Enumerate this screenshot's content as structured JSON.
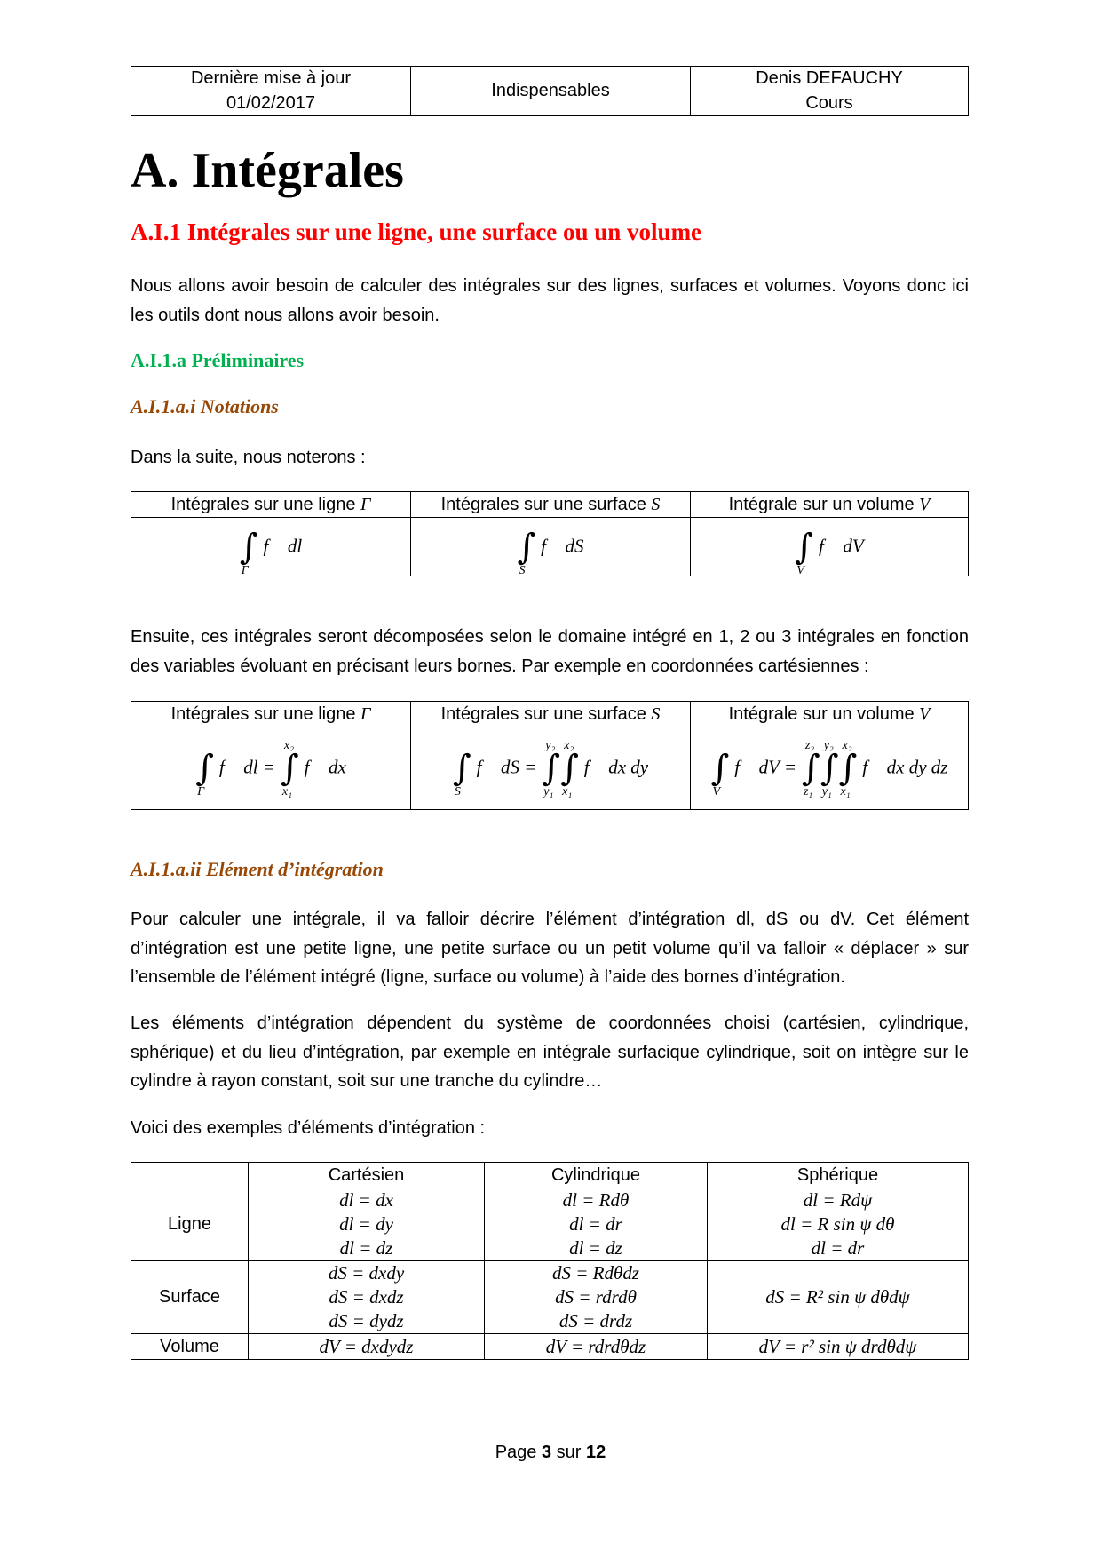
{
  "header": {
    "last_update_label": "Dernière mise à jour",
    "date": "01/02/2017",
    "category": "Indispensables",
    "author": "Denis DEFAUCHY",
    "type": "Cours"
  },
  "title": "A. Intégrales",
  "section": "A.I.1 Intégrales sur une ligne, une surface ou un volume",
  "intro": "Nous allons avoir besoin de calculer des intégrales sur des lignes, surfaces et volumes. Voyons donc ici les outils dont nous allons avoir besoin.",
  "subsection": "A.I.1.a Préliminaires",
  "subsub1": "A.I.1.a.i Notations",
  "notations_intro": "Dans la suite, nous noterons :",
  "table1": {
    "headers": [
      "Intégrales sur une ligne",
      "Intégrales sur une surface",
      "Intégrale sur un volume"
    ],
    "symbols": [
      "Γ",
      "S",
      "V"
    ],
    "elements": [
      "dl",
      "dS",
      "dV"
    ]
  },
  "decomp_text": "Ensuite, ces intégrales seront décomposées selon le domaine intégré en 1, 2 ou 3 intégrales en fonction des variables évoluant en précisant leurs bornes. Par exemple en coordonnées cartésiennes :",
  "subsub2": "A.I.1.a.ii Elément d’intégration",
  "element_p1": "Pour calculer une intégrale, il va falloir décrire l’élément d’intégration dl, dS ou dV. Cet élément d’intégration est une petite ligne, une petite surface ou un petit volume qu’il va falloir « déplacer » sur l’ensemble de l’élément intégré (ligne, surface ou volume) à l’aide des bornes d’intégration.",
  "element_p2": "Les éléments d’intégration dépendent du système de coordonnées choisi (cartésien, cylindrique, sphérique) et du lieu d’intégration, par exemple en intégrale surfacique cylindrique, soit on intègre sur le cylindre à rayon constant, soit sur une tranche du cylindre…",
  "examples_intro": "Voici des exemples d’éléments d’intégration :",
  "table3": {
    "headers": [
      "",
      "Cartésien",
      "Cylindrique",
      "Sphérique"
    ],
    "rows": [
      {
        "label": "Ligne",
        "cart": [
          "dl = dx",
          "dl = dy",
          "dl = dz"
        ],
        "cyl": [
          "dl = Rdθ",
          "dl = dr",
          "dl = dz"
        ],
        "sph": [
          "dl = Rdψ",
          "dl = R sin ψ dθ",
          "dl = dr"
        ]
      },
      {
        "label": "Surface",
        "cart": [
          "dS = dxdy",
          "dS = dxdz",
          "dS = dydz"
        ],
        "cyl": [
          "dS = Rdθdz",
          "dS = rdrdθ",
          "dS = drdz"
        ],
        "sph": [
          "dS = R² sin ψ dθdψ"
        ]
      },
      {
        "label": "Volume",
        "cart": [
          "dV = dxdydz"
        ],
        "cyl": [
          "dV = rdrdθdz"
        ],
        "sph": [
          "dV = r² sin ψ drdθdψ"
        ]
      }
    ]
  },
  "footer": {
    "prefix": "Page",
    "page": "3",
    "middle": "sur",
    "total": "12"
  }
}
